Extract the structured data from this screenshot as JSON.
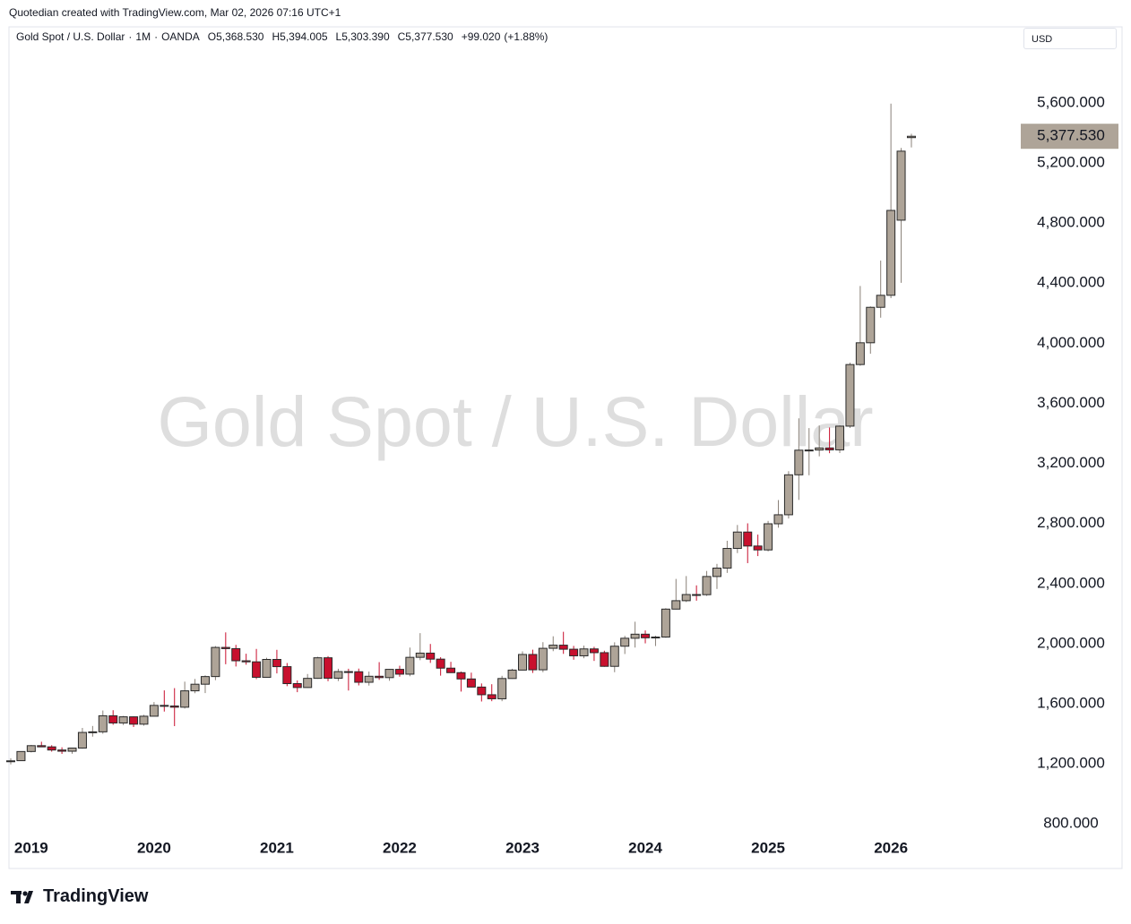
{
  "caption": "Quotedian created with TradingView.com, Mar 02, 2026 07:16 UTC+1",
  "legend": {
    "symbol": "Gold Spot / U.S. Dollar",
    "separator": "·",
    "interval": "1M",
    "exchange": "OANDA",
    "o": "O",
    "open": {
      "value": 5368.53,
      "label": "5,368.530"
    },
    "h": "H",
    "high": {
      "value": 5394.005,
      "label": "5,394.005"
    },
    "l": "L",
    "low": {
      "value": 5303.39,
      "label": "5,303.390"
    },
    "c": "C",
    "close": {
      "value": 5377.53,
      "label": "5,377.530"
    },
    "change": {
      "value": 99.02,
      "label": "+99.020"
    },
    "change_pct": {
      "value": 1.88,
      "label": "(+1.88%)"
    }
  },
  "currency": "USD",
  "brand": "TradingView",
  "chart_data": {
    "type": "candlestick",
    "watermark": "Gold Spot / U.S. Dollar",
    "x": [
      "2018-11",
      "2018-12",
      "2019-01",
      "2019-02",
      "2019-03",
      "2019-04",
      "2019-05",
      "2019-06",
      "2019-07",
      "2019-08",
      "2019-09",
      "2019-10",
      "2019-11",
      "2019-12",
      "2020-01",
      "2020-02",
      "2020-03",
      "2020-04",
      "2020-05",
      "2020-06",
      "2020-07",
      "2020-08",
      "2020-09",
      "2020-10",
      "2020-11",
      "2020-12",
      "2021-01",
      "2021-02",
      "2021-03",
      "2021-04",
      "2021-05",
      "2021-06",
      "2021-07",
      "2021-08",
      "2021-09",
      "2021-10",
      "2021-11",
      "2021-12",
      "2022-01",
      "2022-02",
      "2022-03",
      "2022-04",
      "2022-05",
      "2022-06",
      "2022-07",
      "2022-08",
      "2022-09",
      "2022-10",
      "2022-11",
      "2022-12",
      "2023-01",
      "2023-02",
      "2023-03",
      "2023-04",
      "2023-05",
      "2023-06",
      "2023-07",
      "2023-08",
      "2023-09",
      "2023-10",
      "2023-11",
      "2023-12",
      "2024-01",
      "2024-02",
      "2024-03",
      "2024-04",
      "2024-05",
      "2024-06",
      "2024-07",
      "2024-08",
      "2024-09",
      "2024-10",
      "2024-11",
      "2024-12",
      "2025-01",
      "2025-02",
      "2025-03",
      "2025-04",
      "2025-05",
      "2025-06",
      "2025-07",
      "2025-08",
      "2025-09",
      "2025-10",
      "2025-11",
      "2025-12",
      "2026-01",
      "2026-02",
      "2026-03"
    ],
    "open": [
      1214,
      1221,
      1282,
      1321,
      1313,
      1292,
      1284,
      1305,
      1409,
      1413,
      1520,
      1472,
      1513,
      1464,
      1517,
      1589,
      1585,
      1577,
      1686,
      1730,
      1781,
      1975,
      1967,
      1886,
      1879,
      1776,
      1895,
      1847,
      1734,
      1708,
      1769,
      1906,
      1770,
      1814,
      1813,
      1743,
      1783,
      1774,
      1829,
      1797,
      1909,
      1937,
      1897,
      1837,
      1807,
      1765,
      1711,
      1660,
      1633,
      1768,
      1824,
      1928,
      1826,
      1969,
      1990,
      1963,
      1919,
      1965,
      1940,
      1849,
      1983,
      2036,
      2063,
      2039,
      2044,
      2230,
      2286,
      2327,
      2326,
      2447,
      2503,
      2634,
      2743,
      2650,
      2624,
      2798,
      2858,
      3124,
      3288,
      3289,
      3303,
      3290,
      3448,
      3858,
      4003,
      4239,
      4319,
      4819,
      5368.53
    ],
    "high": [
      1237,
      1284,
      1326,
      1347,
      1324,
      1310,
      1306,
      1439,
      1452,
      1555,
      1557,
      1519,
      1516,
      1526,
      1611,
      1689,
      1704,
      1747,
      1765,
      1789,
      1984,
      2075,
      1992,
      1933,
      1965,
      1906,
      1959,
      1871,
      1755,
      1798,
      1913,
      1917,
      1833,
      1833,
      1834,
      1814,
      1877,
      1831,
      1853,
      1974,
      2070,
      1998,
      1910,
      1879,
      1814,
      1807,
      1735,
      1730,
      1786,
      1833,
      1949,
      1960,
      2010,
      2049,
      2079,
      1985,
      1987,
      1979,
      1953,
      2009,
      2052,
      2146,
      2088,
      2053,
      2236,
      2431,
      2450,
      2388,
      2484,
      2531,
      2685,
      2790,
      2801,
      2726,
      2817,
      2956,
      3148,
      3500,
      3435,
      3452,
      3439,
      3453,
      3871,
      4381,
      4245,
      4550,
      5595,
      5300,
      5394.005
    ],
    "low": [
      1196,
      1221,
      1276,
      1311,
      1281,
      1266,
      1267,
      1301,
      1381,
      1400,
      1460,
      1458,
      1445,
      1454,
      1517,
      1548,
      1451,
      1568,
      1670,
      1671,
      1757,
      1863,
      1848,
      1860,
      1764,
      1775,
      1802,
      1717,
      1677,
      1706,
      1766,
      1750,
      1751,
      1688,
      1722,
      1721,
      1759,
      1753,
      1780,
      1783,
      1890,
      1872,
      1787,
      1805,
      1681,
      1709,
      1615,
      1617,
      1617,
      1766,
      1823,
      1805,
      1810,
      1950,
      1932,
      1893,
      1903,
      1885,
      1846,
      1810,
      1931,
      1974,
      2002,
      1984,
      2039,
      2228,
      2277,
      2286,
      2318,
      2364,
      2471,
      2603,
      2536,
      2583,
      2614,
      2772,
      2833,
      2957,
      3121,
      3247,
      3268,
      3269,
      3436,
      3850,
      3930,
      4170,
      4300,
      4402,
      5303.39
    ],
    "close": [
      1220,
      1282,
      1321,
      1313,
      1292,
      1284,
      1305,
      1409,
      1413,
      1520,
      1472,
      1513,
      1464,
      1517,
      1589,
      1585,
      1577,
      1686,
      1730,
      1781,
      1975,
      1967,
      1886,
      1879,
      1776,
      1895,
      1847,
      1734,
      1708,
      1769,
      1906,
      1770,
      1814,
      1813,
      1743,
      1783,
      1774,
      1829,
      1797,
      1909,
      1937,
      1897,
      1837,
      1807,
      1765,
      1711,
      1660,
      1633,
      1768,
      1824,
      1928,
      1826,
      1969,
      1990,
      1963,
      1919,
      1965,
      1940,
      1849,
      1983,
      2036,
      2063,
      2039,
      2044,
      2230,
      2286,
      2327,
      2326,
      2447,
      2503,
      2634,
      2743,
      2650,
      2624,
      2798,
      2858,
      3124,
      3288,
      3289,
      3303,
      3290,
      3448,
      3858,
      4003,
      4239,
      4319,
      4884,
      5278.51,
      5377.53
    ],
    "up_color": "#aea498",
    "down_color": "#c8102e",
    "border_color": "#2a2a2a",
    "ylim": [
      700,
      6100
    ],
    "yticks": [
      {
        "value": 800,
        "label": "800.000"
      },
      {
        "value": 1200,
        "label": "1,200.000"
      },
      {
        "value": 1600,
        "label": "1,600.000"
      },
      {
        "value": 2000,
        "label": "2,000.000"
      },
      {
        "value": 2400,
        "label": "2,400.000"
      },
      {
        "value": 2800,
        "label": "2,800.000"
      },
      {
        "value": 3200,
        "label": "3,200.000"
      },
      {
        "value": 3600,
        "label": "3,600.000"
      },
      {
        "value": 4000,
        "label": "4,000.000"
      },
      {
        "value": 4400,
        "label": "4,400.000"
      },
      {
        "value": 4800,
        "label": "4,800.000"
      },
      {
        "value": 5200,
        "label": "5,200.000"
      },
      {
        "value": 5600,
        "label": "5,600.000"
      }
    ],
    "xticks": [
      {
        "value": "2019-01",
        "label": "2019"
      },
      {
        "value": "2020-01",
        "label": "2020"
      },
      {
        "value": "2021-01",
        "label": "2021"
      },
      {
        "value": "2022-01",
        "label": "2022"
      },
      {
        "value": "2023-01",
        "label": "2023"
      },
      {
        "value": "2024-01",
        "label": "2024"
      },
      {
        "value": "2025-01",
        "label": "2025"
      },
      {
        "value": "2026-01",
        "label": "2026"
      }
    ],
    "grid": false,
    "last_price_color": "#aea498"
  }
}
